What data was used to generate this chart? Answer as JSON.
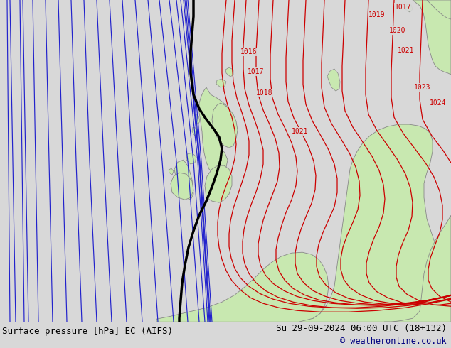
{
  "title_left": "Surface pressure [hPa] EC (AIFS)",
  "title_right": "Su 29-09-2024 06:00 UTC (18+132)",
  "copyright": "© weatheronline.co.uk",
  "bg_color": "#d8d8d8",
  "land_color": "#c8e8b0",
  "border_color": "#888888",
  "blue_color": "#2222cc",
  "black_color": "#000000",
  "red_color": "#cc0000",
  "bottom_bg": "#d0d0d0",
  "figsize": [
    6.34,
    4.9
  ],
  "dpi": 100
}
